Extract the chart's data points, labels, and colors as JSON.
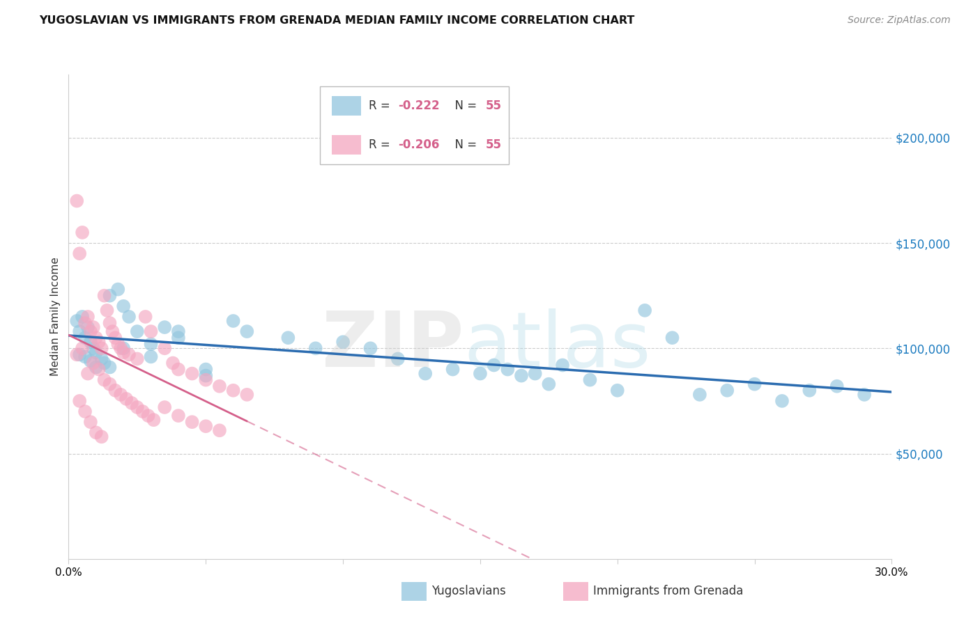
{
  "title": "YUGOSLAVIAN VS IMMIGRANTS FROM GRENADA MEDIAN FAMILY INCOME CORRELATION CHART",
  "source": "Source: ZipAtlas.com",
  "ylabel": "Median Family Income",
  "ytick_labels": [
    "$50,000",
    "$100,000",
    "$150,000",
    "$200,000"
  ],
  "ytick_values": [
    50000,
    100000,
    150000,
    200000
  ],
  "ylim": [
    0,
    230000
  ],
  "xlim": [
    0.0,
    0.3
  ],
  "blue_color": "#92c5de",
  "pink_color": "#f4a6c0",
  "blue_line_color": "#2b6cb0",
  "pink_line_color": "#d45f8a",
  "blue_R": "-0.222",
  "pink_R": "-0.206",
  "N": "55",
  "yuge_x": [
    0.003,
    0.004,
    0.005,
    0.006,
    0.007,
    0.008,
    0.009,
    0.01,
    0.012,
    0.013,
    0.015,
    0.018,
    0.02,
    0.022,
    0.025,
    0.03,
    0.035,
    0.04,
    0.05,
    0.06,
    0.065,
    0.08,
    0.09,
    0.1,
    0.11,
    0.12,
    0.13,
    0.14,
    0.15,
    0.155,
    0.16,
    0.165,
    0.17,
    0.175,
    0.18,
    0.19,
    0.2,
    0.21,
    0.22,
    0.23,
    0.24,
    0.25,
    0.26,
    0.27,
    0.28,
    0.29,
    0.004,
    0.006,
    0.008,
    0.01,
    0.015,
    0.02,
    0.03,
    0.04,
    0.05
  ],
  "yuge_y": [
    113000,
    108000,
    115000,
    105000,
    110000,
    103000,
    100000,
    98000,
    95000,
    93000,
    91000,
    128000,
    120000,
    115000,
    108000,
    102000,
    110000,
    105000,
    90000,
    113000,
    108000,
    105000,
    100000,
    103000,
    100000,
    95000,
    88000,
    90000,
    88000,
    92000,
    90000,
    87000,
    88000,
    83000,
    92000,
    85000,
    80000,
    118000,
    105000,
    78000,
    80000,
    83000,
    75000,
    80000,
    82000,
    78000,
    97000,
    96000,
    94000,
    91000,
    125000,
    100000,
    96000,
    108000,
    87000
  ],
  "gren_x": [
    0.003,
    0.004,
    0.005,
    0.006,
    0.007,
    0.008,
    0.009,
    0.01,
    0.011,
    0.012,
    0.013,
    0.014,
    0.015,
    0.016,
    0.017,
    0.018,
    0.019,
    0.02,
    0.022,
    0.025,
    0.028,
    0.03,
    0.035,
    0.038,
    0.04,
    0.045,
    0.05,
    0.055,
    0.06,
    0.065,
    0.003,
    0.005,
    0.007,
    0.009,
    0.011,
    0.013,
    0.015,
    0.017,
    0.019,
    0.021,
    0.023,
    0.025,
    0.027,
    0.029,
    0.031,
    0.035,
    0.04,
    0.045,
    0.05,
    0.055,
    0.004,
    0.006,
    0.008,
    0.01,
    0.012
  ],
  "gren_y": [
    170000,
    145000,
    155000,
    112000,
    115000,
    108000,
    110000,
    105000,
    103000,
    100000,
    125000,
    118000,
    112000,
    108000,
    105000,
    102000,
    100000,
    98000,
    97000,
    95000,
    115000,
    108000,
    100000,
    93000,
    90000,
    88000,
    85000,
    82000,
    80000,
    78000,
    97000,
    100000,
    88000,
    93000,
    90000,
    85000,
    83000,
    80000,
    78000,
    76000,
    74000,
    72000,
    70000,
    68000,
    66000,
    72000,
    68000,
    65000,
    63000,
    61000,
    75000,
    70000,
    65000,
    60000,
    58000
  ]
}
